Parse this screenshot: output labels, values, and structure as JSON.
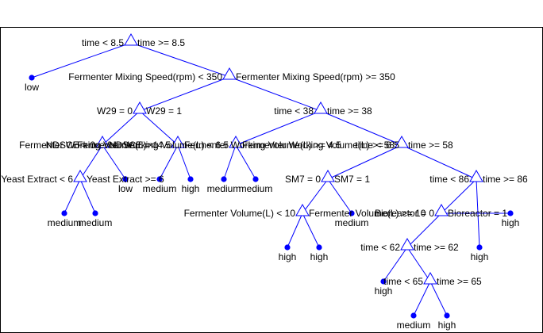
{
  "figure": {
    "accent_color": "#0000ff",
    "split_marker": "triangle",
    "leaf_marker": "filled-dot"
  },
  "tree": {
    "splits": [
      {
        "id": "n1",
        "left_rule": "time < 8.5",
        "right_rule": "time >= 8.5"
      },
      {
        "id": "n2",
        "left_rule": "Fermenter Mixing Speed(rpm) < 350",
        "right_rule": "Fermenter Mixing Speed(rpm) >= 350"
      },
      {
        "id": "n3",
        "left_rule": "W29 = 0",
        "right_rule": "W29 = 1"
      },
      {
        "id": "n4",
        "left_rule": "time < 38",
        "right_rule": "time >= 38"
      },
      {
        "id": "n5",
        "left_rule": "NDSCE = 0",
        "right_rule": "NDSCE = 1"
      },
      {
        "id": "n6",
        "left_rule": "Fermenter Working Volume(L) < 4.5",
        "right_rule": "Fermenter Working Volume(L) >= 4.5"
      },
      {
        "id": "n7",
        "left_rule": "Fermenter Working Volume(L) < 6.5",
        "right_rule": "Fermenter Working Volume(L) >= 6.5"
      },
      {
        "id": "n8",
        "left_rule": "time < 58",
        "right_rule": "time >= 58"
      },
      {
        "id": "n9",
        "left_rule": "Yeast Extract < 6",
        "right_rule": "Yeast Extract >= 6"
      },
      {
        "id": "n10",
        "left_rule": "SM7 = 0",
        "right_rule": "SM7 = 1"
      },
      {
        "id": "n11",
        "left_rule": "time < 86",
        "right_rule": "time >= 86"
      },
      {
        "id": "n12",
        "left_rule": "Fermenter Volume(L) < 10",
        "right_rule": "Fermenter Volume(L) >= 10"
      },
      {
        "id": "n13",
        "left_rule": "Bioreactor = 0",
        "right_rule": "Bioreactor = 1"
      },
      {
        "id": "n14",
        "left_rule": "time < 62",
        "right_rule": "time >= 62"
      },
      {
        "id": "n15",
        "left_rule": "time < 65",
        "right_rule": "time >= 65"
      }
    ],
    "leaves": [
      {
        "id": "l1",
        "label": "low"
      },
      {
        "id": "l2",
        "label": "medium"
      },
      {
        "id": "l3",
        "label": "medium"
      },
      {
        "id": "l4",
        "label": "low"
      },
      {
        "id": "l5",
        "label": "medium"
      },
      {
        "id": "l6",
        "label": "high"
      },
      {
        "id": "l7",
        "label": "medium"
      },
      {
        "id": "l8",
        "label": "medium"
      },
      {
        "id": "l9",
        "label": "high"
      },
      {
        "id": "l10",
        "label": "high"
      },
      {
        "id": "l11",
        "label": "medium"
      },
      {
        "id": "l12",
        "label": "high"
      },
      {
        "id": "l13",
        "label": "high"
      },
      {
        "id": "l14",
        "label": "high"
      },
      {
        "id": "l15",
        "label": "medium"
      },
      {
        "id": "l16",
        "label": "high"
      }
    ],
    "edges": [
      [
        "n1",
        "l1"
      ],
      [
        "n1",
        "n2"
      ],
      [
        "n2",
        "n3"
      ],
      [
        "n2",
        "n4"
      ],
      [
        "n3",
        "n5"
      ],
      [
        "n3",
        "n6"
      ],
      [
        "n5",
        "n9"
      ],
      [
        "n5",
        "l4"
      ],
      [
        "n9",
        "l2"
      ],
      [
        "n9",
        "l3"
      ],
      [
        "n6",
        "l5"
      ],
      [
        "n6",
        "l6"
      ],
      [
        "n4",
        "n7"
      ],
      [
        "n4",
        "n8"
      ],
      [
        "n7",
        "l7"
      ],
      [
        "n7",
        "l8"
      ],
      [
        "n8",
        "n10"
      ],
      [
        "n8",
        "n11"
      ],
      [
        "n10",
        "n12"
      ],
      [
        "n10",
        "l11"
      ],
      [
        "n12",
        "l9"
      ],
      [
        "n12",
        "l10"
      ],
      [
        "n11",
        "n13"
      ],
      [
        "n11",
        "l12"
      ],
      [
        "n13",
        "n14"
      ],
      [
        "n13",
        "l13"
      ],
      [
        "n14",
        "l14"
      ],
      [
        "n14",
        "n15"
      ],
      [
        "n15",
        "l15"
      ],
      [
        "n15",
        "l16"
      ]
    ]
  }
}
